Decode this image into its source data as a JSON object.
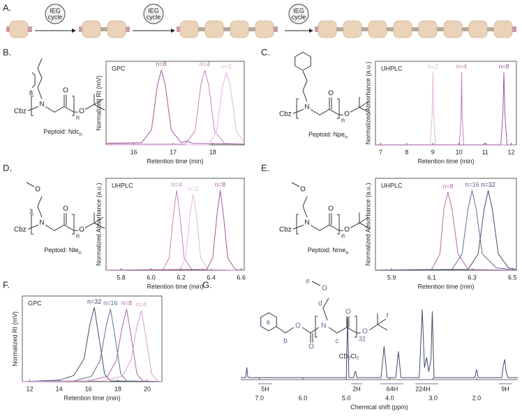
{
  "panel_labels": [
    "A.",
    "B.",
    "C.",
    "D.",
    "E.",
    "F.",
    "G."
  ],
  "scheme": {
    "cycles": [
      {
        "line1": "IEG",
        "line2": "cycle"
      },
      {
        "line1": "IEG",
        "line2": "cycle"
      },
      {
        "line1": "IEG",
        "line2": "cycle"
      }
    ]
  },
  "structures": [
    {
      "atoms": [
        "Cbz",
        "N",
        "O",
        "O"
      ],
      "repeat": "n",
      "chain_count": "8",
      "label": "Peptoid: Ndc",
      "label_sub": "n"
    },
    {
      "atoms": [
        "Cbz",
        "N",
        "O",
        "O"
      ],
      "repeat": "n",
      "label": "Peptoid: Npe",
      "label_sub": "n"
    },
    {
      "atoms": [
        "Cbz",
        "N",
        "O",
        "O",
        "O"
      ],
      "repeat": "n",
      "chain_count": "3",
      "label": "Peptoid: Nte",
      "label_sub": "n"
    },
    {
      "atoms": [
        "Cbz",
        "N",
        "O",
        "O",
        "O"
      ],
      "repeat": "n",
      "label": "Peptoid: Nme",
      "label_sub": "n"
    }
  ],
  "nmr_structure": {
    "atoms": [
      "O",
      "O",
      "N",
      "O",
      "O",
      "O"
    ],
    "repeat": "32"
  },
  "chart_data": [
    {
      "type": "line",
      "title": "GPC",
      "xlabel": "Retention time (min)",
      "ylabel": "Normalized RI (mV)",
      "frame": true,
      "xlim": [
        15.3,
        18.8
      ],
      "xticks": [
        16,
        17,
        18
      ],
      "ylim": [
        0,
        112
      ],
      "series": [
        {
          "name": "n=8",
          "color": "#a1569d",
          "x": [
            15.3,
            16.2,
            16.45,
            16.6,
            16.7,
            16.8,
            16.95,
            17.2,
            17.35,
            17.5,
            18.8
          ],
          "values": [
            2,
            3,
            20,
            80,
            100,
            80,
            20,
            3,
            5,
            2,
            1
          ]
        },
        {
          "name": "n=4",
          "color": "#c27fbd",
          "x": [
            15.3,
            17.3,
            17.55,
            17.7,
            17.8,
            17.9,
            18.05,
            18.3,
            18.8
          ],
          "values": [
            1,
            1,
            18,
            80,
            100,
            80,
            18,
            2,
            1
          ]
        },
        {
          "name": "n=2",
          "color": "#e4b6df",
          "x": [
            15.3,
            17.9,
            18.1,
            18.25,
            18.35,
            18.45,
            18.6,
            18.8
          ],
          "values": [
            0,
            0,
            18,
            78,
            97,
            78,
            18,
            4
          ]
        }
      ]
    },
    {
      "type": "line",
      "title": "UHPLC",
      "xlabel": "Retention time (min)",
      "ylabel": "Normalized Absorbance (a.u.)",
      "frame": true,
      "xlim": [
        6.8,
        12.2
      ],
      "xticks": [
        7,
        8,
        9,
        10,
        11,
        12
      ],
      "ylim": [
        0,
        112
      ],
      "series": [
        {
          "name": "n=2",
          "color": "#e4b6df",
          "x": [
            6.8,
            8.9,
            8.97,
            9.0,
            9.03,
            9.1,
            12.2
          ],
          "values": [
            0,
            0,
            40,
            97,
            40,
            0,
            0
          ]
        },
        {
          "name": "n=4",
          "color": "#c27fbd",
          "x": [
            6.8,
            10.02,
            10.08,
            10.1,
            10.12,
            10.18,
            12.2
          ],
          "values": [
            0,
            0,
            40,
            97,
            40,
            0,
            0
          ]
        },
        {
          "name": "n=8",
          "color": "#a1569d",
          "x": [
            6.8,
            10.9,
            11.0,
            11.1,
            11.6,
            11.68,
            11.72,
            11.76,
            11.84,
            12.2
          ],
          "values": [
            0,
            0,
            2,
            0,
            0,
            40,
            97,
            40,
            0,
            0
          ]
        }
      ]
    },
    {
      "type": "line",
      "title": "UHPLC",
      "xlabel": "Retention time (min)",
      "ylabel": "Normalized Absorbance (a.u.)",
      "frame": true,
      "xlim": [
        5.7,
        6.62
      ],
      "xticks": [
        5.8,
        {
          "value": 6,
          "label": "6.0"
        },
        6.2,
        6.4,
        6.6
      ],
      "ylim": [
        0,
        112
      ],
      "series": [
        {
          "name": "n=4",
          "color": "#c27fbd",
          "x": [
            5.7,
            6.08,
            6.12,
            6.15,
            6.17,
            6.19,
            6.22,
            6.27,
            6.62
          ],
          "values": [
            0,
            1,
            15,
            70,
            97,
            70,
            15,
            1,
            0
          ]
        },
        {
          "name": "n=2",
          "color": "#e4b6df",
          "x": [
            5.7,
            6.19,
            6.23,
            6.26,
            6.28,
            6.3,
            6.33,
            6.38,
            6.62
          ],
          "values": [
            0,
            1,
            15,
            70,
            92,
            70,
            15,
            1,
            0
          ]
        },
        {
          "name": "n=8",
          "color": "#a1569d",
          "x": [
            5.7,
            6.37,
            6.41,
            6.44,
            6.46,
            6.48,
            6.51,
            6.56,
            6.62
          ],
          "values": [
            0,
            1,
            15,
            70,
            97,
            70,
            15,
            1,
            0
          ]
        }
      ]
    },
    {
      "type": "line",
      "title": "UHPLC",
      "xlabel": "Retention time (min)",
      "ylabel": "Normalized Absorbance (a.u.)",
      "frame": true,
      "xlim": [
        5.82,
        6.52
      ],
      "xticks": [
        5.9,
        6.1,
        6.3,
        6.5
      ],
      "ylim": [
        0,
        112
      ],
      "series": [
        {
          "name": "n=8",
          "color": "#b26aad",
          "x": [
            5.82,
            6.1,
            6.14,
            6.16,
            6.18,
            6.2,
            6.23,
            6.28,
            6.52
          ],
          "values": [
            0,
            1,
            20,
            75,
            95,
            75,
            20,
            1,
            0
          ]
        },
        {
          "name": "n=16",
          "color": "#5f6d8c",
          "x": [
            5.82,
            6.2,
            6.25,
            6.28,
            6.3,
            6.32,
            6.35,
            6.42,
            6.52
          ],
          "values": [
            0,
            1,
            20,
            75,
            97,
            75,
            20,
            3,
            0
          ]
        },
        {
          "name": "n=32",
          "color": "#3d4a6b",
          "x": [
            5.82,
            6.28,
            6.33,
            6.36,
            6.38,
            6.4,
            6.43,
            6.48,
            6.52
          ],
          "values": [
            0,
            1,
            20,
            75,
            97,
            75,
            20,
            3,
            1
          ]
        }
      ]
    },
    {
      "type": "line",
      "title": "GPC",
      "xlabel": "Retention time (min)",
      "ylabel": "Normalized RI (mV)",
      "frame": true,
      "xlim": [
        11.5,
        21
      ],
      "xticks": [
        12,
        14,
        16,
        18,
        20
      ],
      "ylim": [
        0,
        112
      ],
      "series": [
        {
          "name": "n=32",
          "color": "#3d4a6b",
          "x": [
            11.5,
            14,
            15,
            15.7,
            16.1,
            16.4,
            16.7,
            17.1,
            17.5,
            21
          ],
          "values": [
            0,
            2,
            8,
            30,
            75,
            97,
            60,
            10,
            1,
            0
          ]
        },
        {
          "name": "n=16",
          "color": "#5f6d8c",
          "x": [
            11.5,
            15,
            16.2,
            16.8,
            17.2,
            17.5,
            17.8,
            18.2,
            18.6,
            21
          ],
          "values": [
            0,
            1,
            7,
            28,
            72,
            95,
            60,
            10,
            1,
            0
          ]
        },
        {
          "name": "n=8",
          "color": "#a963a4",
          "x": [
            11.5,
            16,
            17.3,
            17.9,
            18.3,
            18.6,
            18.9,
            19.3,
            19.7,
            21
          ],
          "values": [
            0,
            1,
            7,
            28,
            72,
            95,
            60,
            10,
            1,
            0
          ]
        },
        {
          "name": "n=4",
          "color": "#d79ad1",
          "x": [
            11.5,
            17,
            18.3,
            18.9,
            19.3,
            19.6,
            19.9,
            20.3,
            20.7,
            21
          ],
          "values": [
            0,
            1,
            7,
            28,
            72,
            93,
            60,
            10,
            1,
            0
          ]
        }
      ]
    },
    {
      "type": "line",
      "xlabel": "Chemical shift (ppm)",
      "frame": false,
      "xlim": [
        7.43,
        1.05
      ],
      "xticks": [
        {
          "value": 7,
          "label": "7.0"
        },
        {
          "value": 6,
          "label": "6.0"
        },
        {
          "value": 5,
          "label": "5.0"
        },
        {
          "value": 4,
          "label": "4.0"
        },
        {
          "value": 3,
          "label": "3.0"
        },
        {
          "value": 2,
          "label": "2.0"
        }
      ],
      "ylim": [
        0,
        80
      ],
      "series": [
        {
          "color": "#3d4a6b",
          "x": [
            7.43,
            7.32,
            7.29,
            7.27,
            7.24,
            5.0,
            4.97,
            4.94,
            4.93,
            4.83,
            4.8,
            4.78,
            4.76,
            4.2,
            4.13,
            4.06,
            3.86,
            3.8,
            3.74,
            3.32,
            3.25,
            3.2,
            3.15,
            3.1,
            3.05,
            3.02,
            2.98,
            2.04,
            2.0,
            1.96,
            1.42,
            1.38,
            1.35,
            1.32,
            1.28,
            1.05
          ],
          "values": [
            2,
            2,
            12,
            3,
            2,
            2,
            62,
            2,
            2,
            2,
            8,
            8,
            2,
            2,
            33,
            2,
            2,
            28,
            2,
            2,
            70,
            12,
            22,
            8,
            20,
            68,
            2,
            2,
            10,
            2,
            2,
            15,
            20,
            8,
            2,
            2
          ]
        }
      ],
      "peak_letters": [
        "a",
        "b",
        "c",
        "d",
        "e",
        "f"
      ],
      "solvent": "CD₂Cl₂",
      "integrals": [
        "5H",
        "2H",
        "64H",
        "224H",
        "9H"
      ]
    }
  ]
}
